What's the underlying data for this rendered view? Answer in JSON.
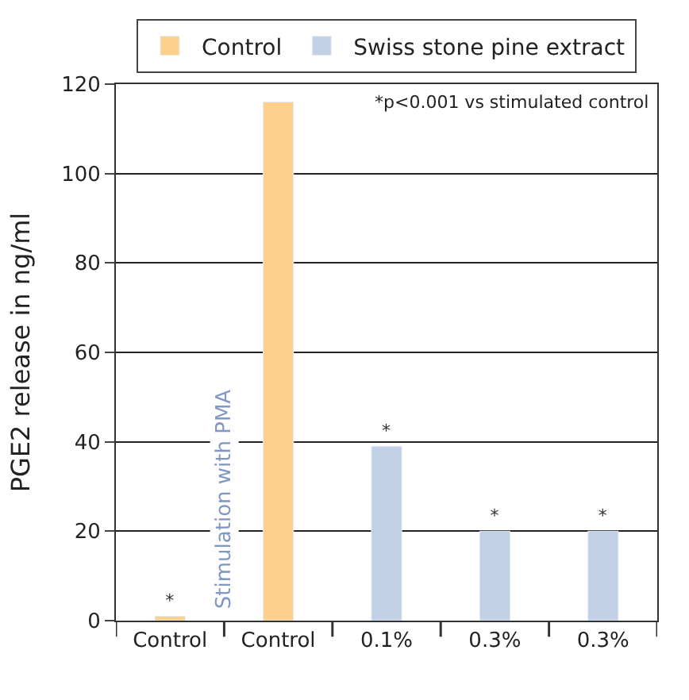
{
  "chart_data": {
    "type": "bar",
    "ylabel": "PGE2 release in ng/ml",
    "categories": [
      "Control",
      "Control",
      "0.1%",
      "0.3%",
      "0.3%"
    ],
    "series": [
      {
        "name": "Control",
        "color": "#fdd18c",
        "values": [
          1,
          116,
          null,
          null,
          null
        ],
        "value_labels": [
          "*",
          null,
          null,
          null,
          null
        ]
      },
      {
        "name": "Swiss stone pine extract",
        "color": "#c2d0e6",
        "values": [
          null,
          null,
          39,
          20,
          20
        ],
        "value_labels": [
          null,
          null,
          "*",
          "*",
          "*"
        ]
      }
    ],
    "ylim": [
      0,
      120
    ],
    "yticks": [
      0,
      20,
      40,
      60,
      80,
      100,
      120
    ],
    "grid": "y",
    "legend": "top",
    "annotations": [
      "*p<0.001 vs stimulated control",
      "Stimulation with PMA"
    ]
  }
}
